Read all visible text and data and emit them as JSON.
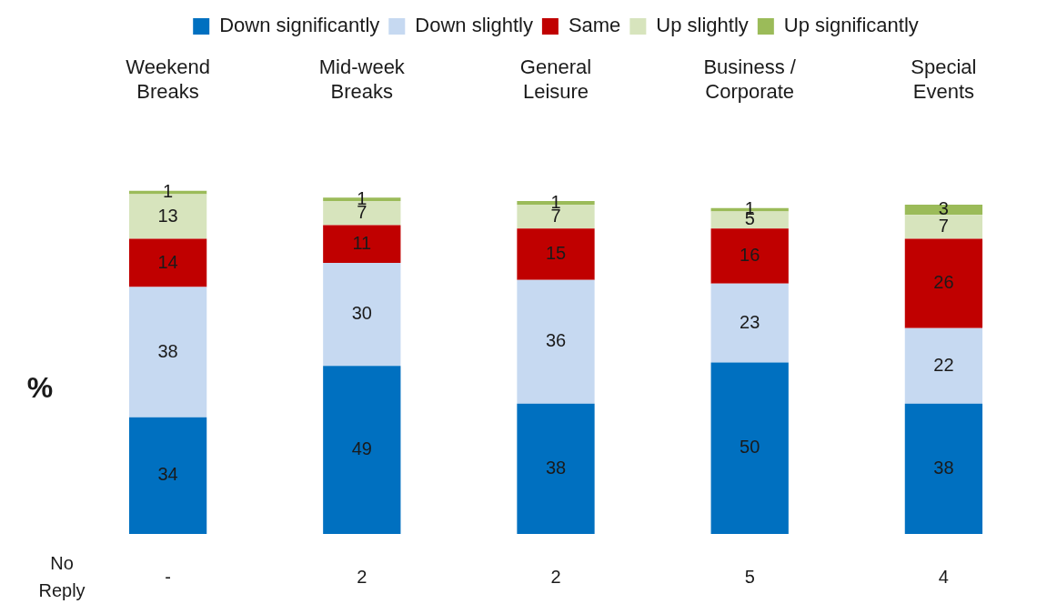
{
  "chart_data": {
    "type": "bar",
    "stacked": true,
    "ylabel": "%",
    "legend": "top",
    "grid": false,
    "categories": [
      "Weekend Breaks",
      "Mid-week Breaks",
      "General Leisure",
      "Business / Corporate",
      "Special Events"
    ],
    "series": [
      {
        "name": "Down significantly",
        "color": "#0070c0",
        "values": [
          34,
          49,
          38,
          50,
          38
        ]
      },
      {
        "name": "Down slightly",
        "color": "#c6d9f1",
        "values": [
          38,
          30,
          36,
          23,
          22
        ]
      },
      {
        "name": "Same",
        "color": "#c00000",
        "values": [
          14,
          11,
          15,
          16,
          26
        ]
      },
      {
        "name": "Up slightly",
        "color": "#d7e4bd",
        "values": [
          13,
          7,
          7,
          5,
          7
        ]
      },
      {
        "name": "Up significantly",
        "color": "#9bbb59",
        "values": [
          1,
          1,
          1,
          1,
          3
        ]
      }
    ],
    "data_labels": true,
    "annotations": [
      "No Reply",
      "-",
      "2",
      "2",
      "5",
      "4"
    ]
  }
}
